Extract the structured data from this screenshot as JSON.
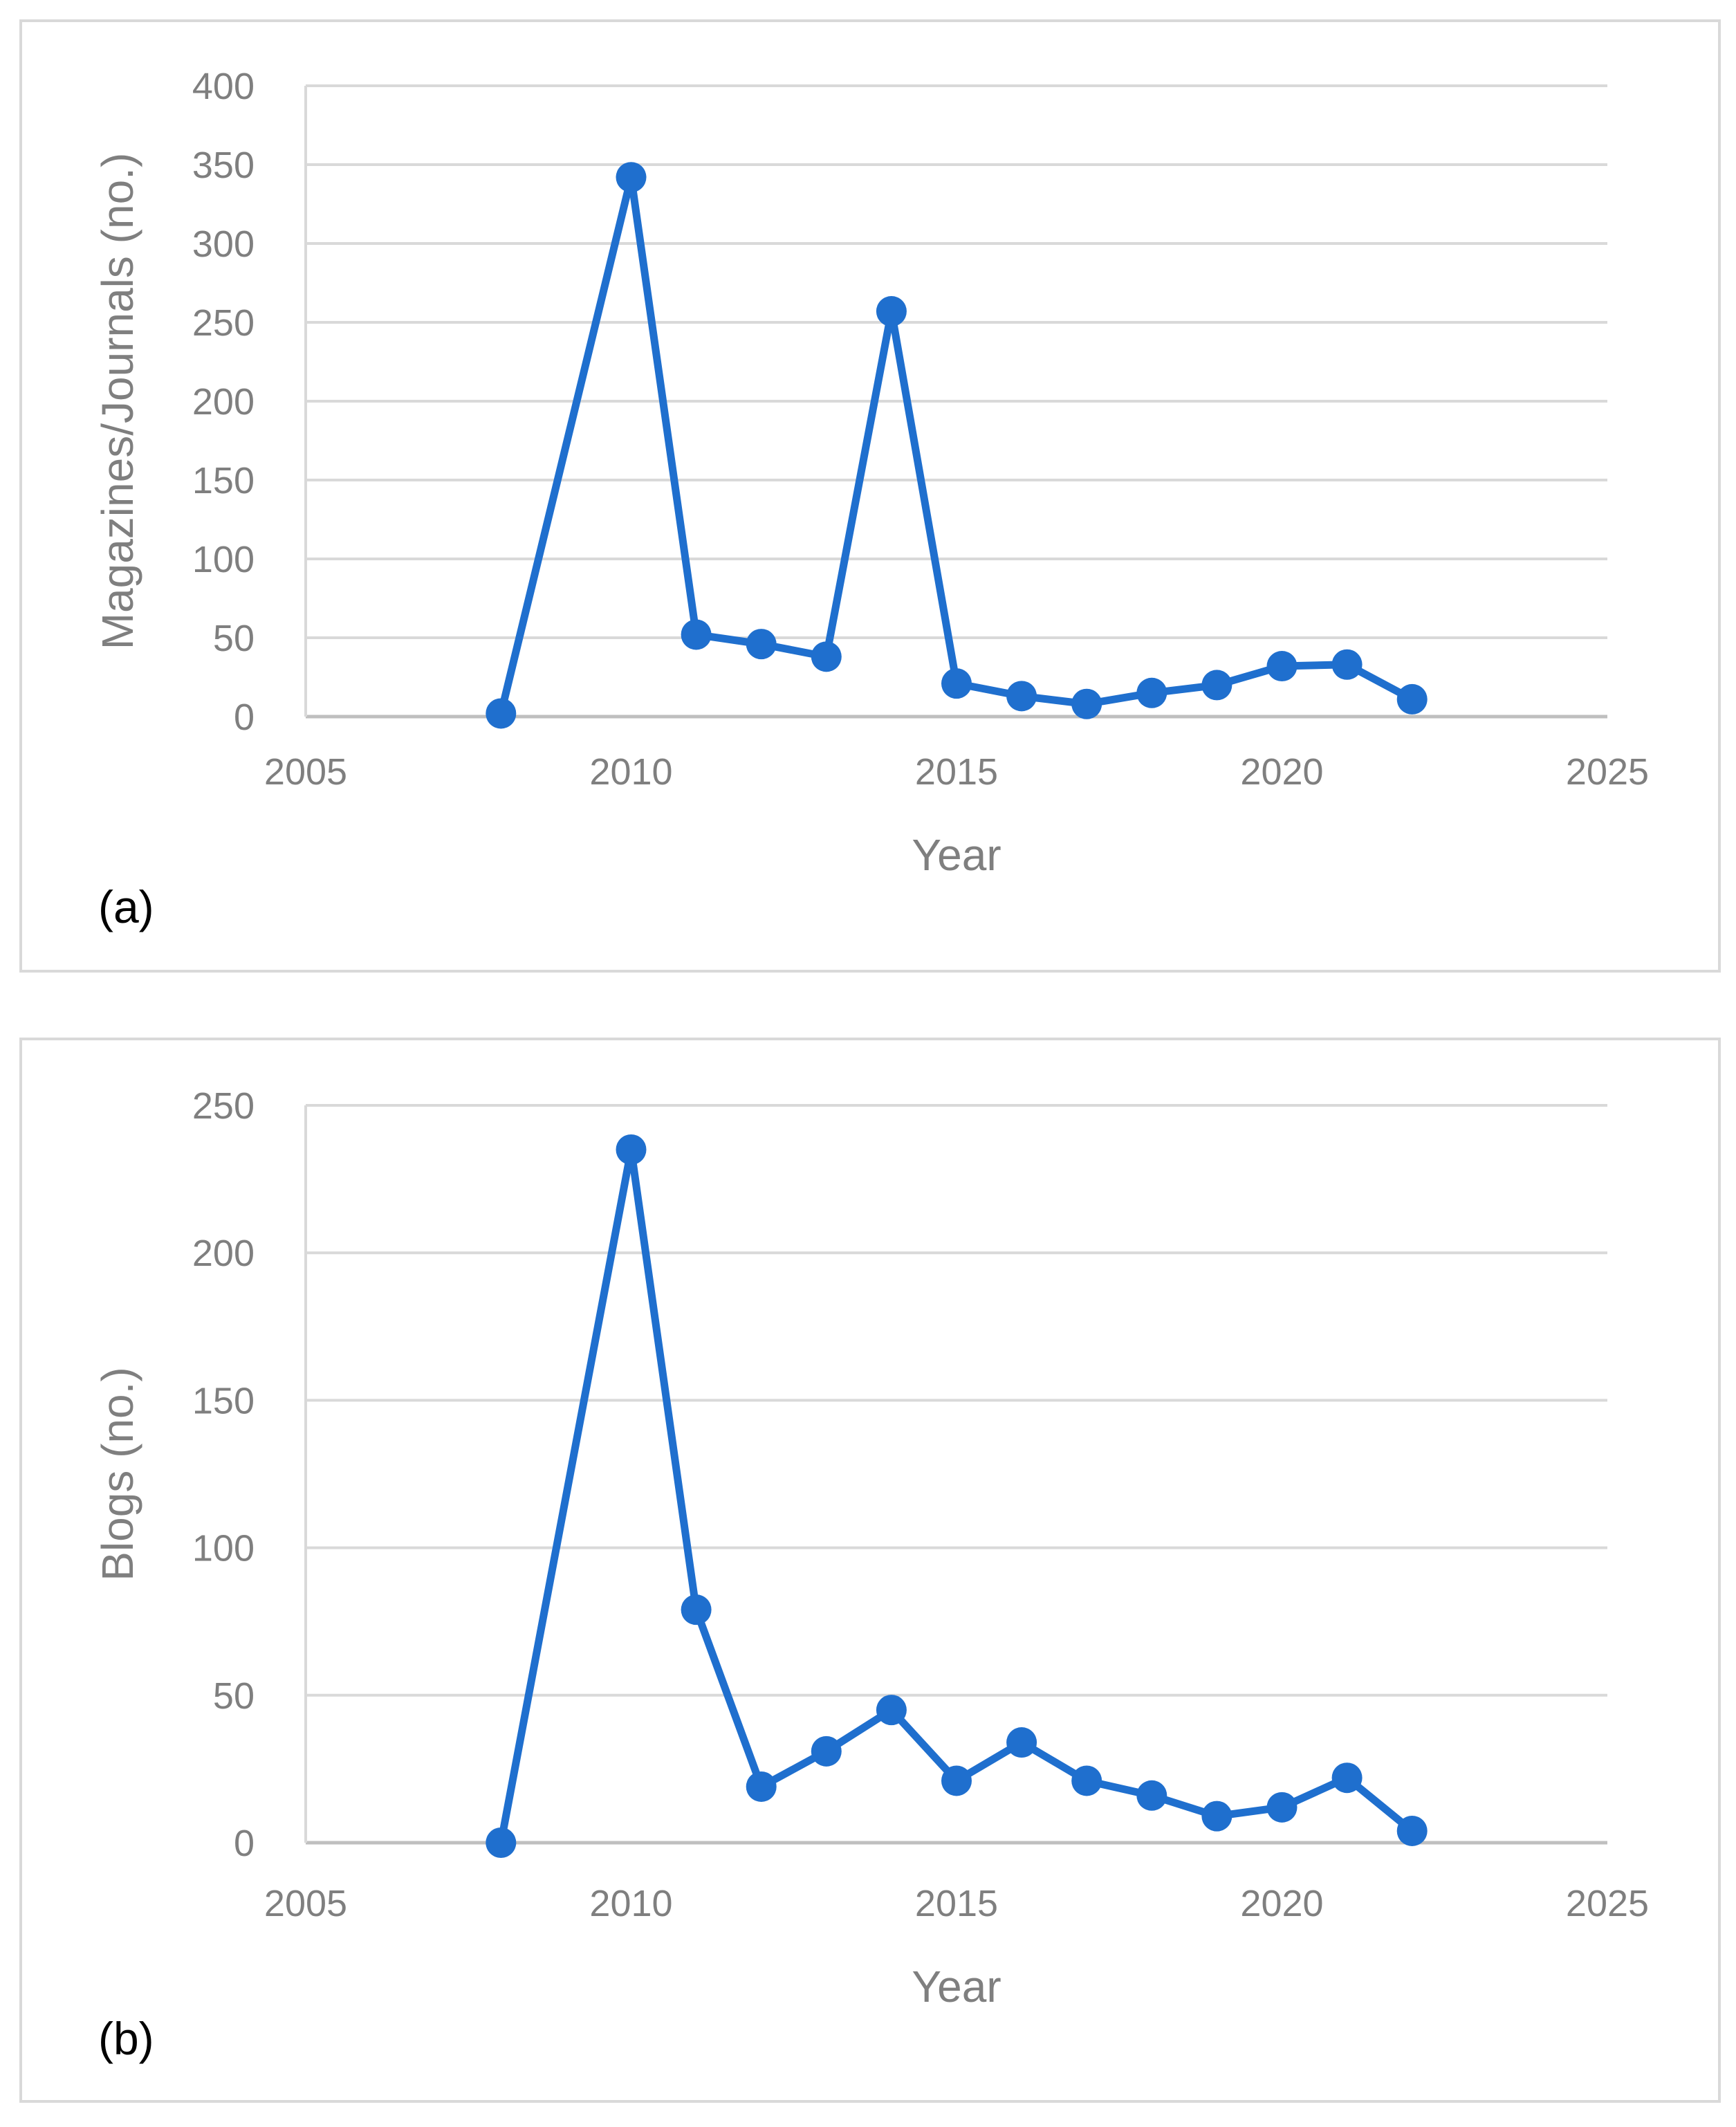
{
  "chart_data": [
    {
      "type": "scatter",
      "panel_label": "(a)",
      "xlabel": "Year",
      "ylabel": "Magazines/Journals (no.)",
      "xlim": [
        2005,
        2025
      ],
      "ylim": [
        0,
        400
      ],
      "xticks": [
        2005,
        2010,
        2015,
        2020,
        2025
      ],
      "yticks": [
        0,
        50,
        100,
        150,
        200,
        250,
        300,
        350,
        400
      ],
      "grid": true,
      "series": [
        {
          "name": "Magazines/Journals",
          "color": "#1f6fce",
          "x": [
            2008,
            2010,
            2011,
            2012,
            2013,
            2014,
            2015,
            2016,
            2017,
            2018,
            2019,
            2020,
            2021,
            2022
          ],
          "y": [
            2,
            342,
            52,
            46,
            38,
            257,
            21,
            13,
            8,
            15,
            20,
            32,
            33,
            11
          ]
        }
      ]
    },
    {
      "type": "scatter",
      "panel_label": "(b)",
      "xlabel": "Year",
      "ylabel": "Blogs (no.)",
      "xlim": [
        2005,
        2025
      ],
      "ylim": [
        0,
        250
      ],
      "xticks": [
        2005,
        2010,
        2015,
        2020,
        2025
      ],
      "yticks": [
        0,
        50,
        100,
        150,
        200,
        250
      ],
      "grid": true,
      "series": [
        {
          "name": "Blogs",
          "color": "#1f6fce",
          "x": [
            2008,
            2010,
            2011,
            2012,
            2013,
            2014,
            2015,
            2016,
            2017,
            2018,
            2019,
            2020,
            2021,
            2022
          ],
          "y": [
            0,
            235,
            79,
            19,
            31,
            45,
            21,
            34,
            21,
            16,
            9,
            12,
            22,
            4
          ]
        }
      ]
    }
  ]
}
